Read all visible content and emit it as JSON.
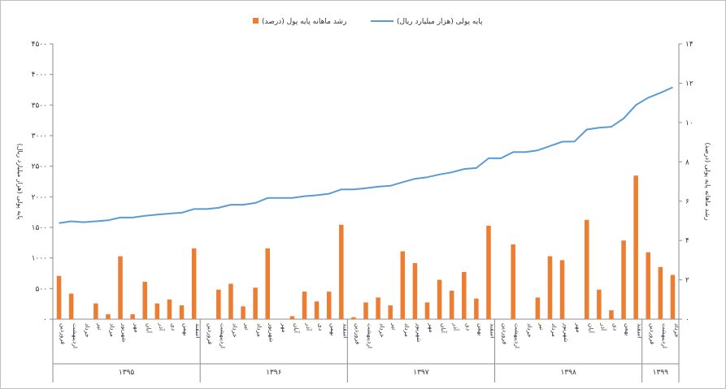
{
  "chart_data": {
    "type": "bar",
    "legend": {
      "placement": "top",
      "bar_label": "رشد ماهانه پایه پول (درصد)",
      "line_label": "پایه پولی (هزار میلیارد ریال)"
    },
    "left_axis": {
      "label": "پایه پولی (هزار میلیارد ریال)",
      "min": 0,
      "max": 4500,
      "step": 500,
      "tick_labels": [
        "۰",
        "۵۰۰",
        "۱۰۰۰",
        "۱۵۰۰",
        "۲۰۰۰",
        "۲۵۰۰",
        "۳۰۰۰",
        "۳۵۰۰",
        "۴۰۰۰",
        "۴۵۰۰"
      ]
    },
    "right_axis": {
      "label": "رشد ماهانه پایه پولی (درصد)",
      "min": 0,
      "max": 14,
      "step": 2,
      "tick_labels": [
        "۰",
        "۲",
        "۴",
        "۶",
        "۸",
        "۱۰",
        "۱۲",
        "۱۴"
      ]
    },
    "grid": false,
    "groups": [
      {
        "year": "۱۳۹۵",
        "months": [
          "فروردین",
          "اردیبهشت",
          "خرداد",
          "تیر",
          "مرداد",
          "شهریور",
          "مهر",
          "آبان",
          "آذر",
          "دی",
          "بهمن",
          "اسفند"
        ]
      },
      {
        "year": "۱۳۹۶",
        "months": [
          "فروردین",
          "اردیبهشت",
          "خرداد",
          "تیر",
          "مرداد",
          "شهریور",
          "مهر",
          "آبان",
          "آذر",
          "دی",
          "بهمن",
          "اسفند"
        ]
      },
      {
        "year": "۱۳۹۷",
        "months": [
          "فروردین",
          "اردیبهشت",
          "خرداد",
          "تیر",
          "مرداد",
          "شهریور",
          "مهر",
          "آبان",
          "آذر",
          "دی",
          "بهمن",
          "اسفند"
        ]
      },
      {
        "year": "۱۳۹۸",
        "months": [
          "فروردین",
          "اردیبهشت",
          "خرداد",
          "تیر",
          "مرداد",
          "شهریور",
          "مهر",
          "آبان",
          "آذر",
          "دی",
          "بهمن",
          "اسفند"
        ]
      },
      {
        "year": "۱۳۹۹",
        "months": [
          "فروردین",
          "اردیبهشت",
          "خرداد"
        ]
      }
    ],
    "growth_percent": [
      2.2,
      1.3,
      0,
      0.8,
      0.25,
      3.2,
      0.25,
      1.9,
      0.8,
      1.0,
      0.7,
      3.6,
      0,
      1.5,
      1.8,
      0.65,
      1.6,
      3.6,
      0,
      0.15,
      1.4,
      0.9,
      1.4,
      4.8,
      0.1,
      0.85,
      1.1,
      0.7,
      3.45,
      2.85,
      0.85,
      2.0,
      1.45,
      2.4,
      1.05,
      4.75,
      0,
      3.8,
      0,
      1.1,
      3.2,
      3.0,
      0,
      5.05,
      1.5,
      0.45,
      4.0,
      7.3,
      3.4,
      2.65,
      2.25
    ],
    "monetary_base": [
      1570,
      1600,
      1585,
      1600,
      1615,
      1660,
      1660,
      1690,
      1710,
      1725,
      1740,
      1800,
      1800,
      1820,
      1870,
      1870,
      1900,
      1980,
      1980,
      1980,
      2010,
      2025,
      2050,
      2120,
      2120,
      2140,
      2165,
      2180,
      2240,
      2295,
      2320,
      2365,
      2400,
      2455,
      2470,
      2630,
      2630,
      2730,
      2730,
      2760,
      2830,
      2900,
      2905,
      3100,
      3130,
      3145,
      3280,
      3500,
      3620,
      3700,
      3790
    ]
  }
}
